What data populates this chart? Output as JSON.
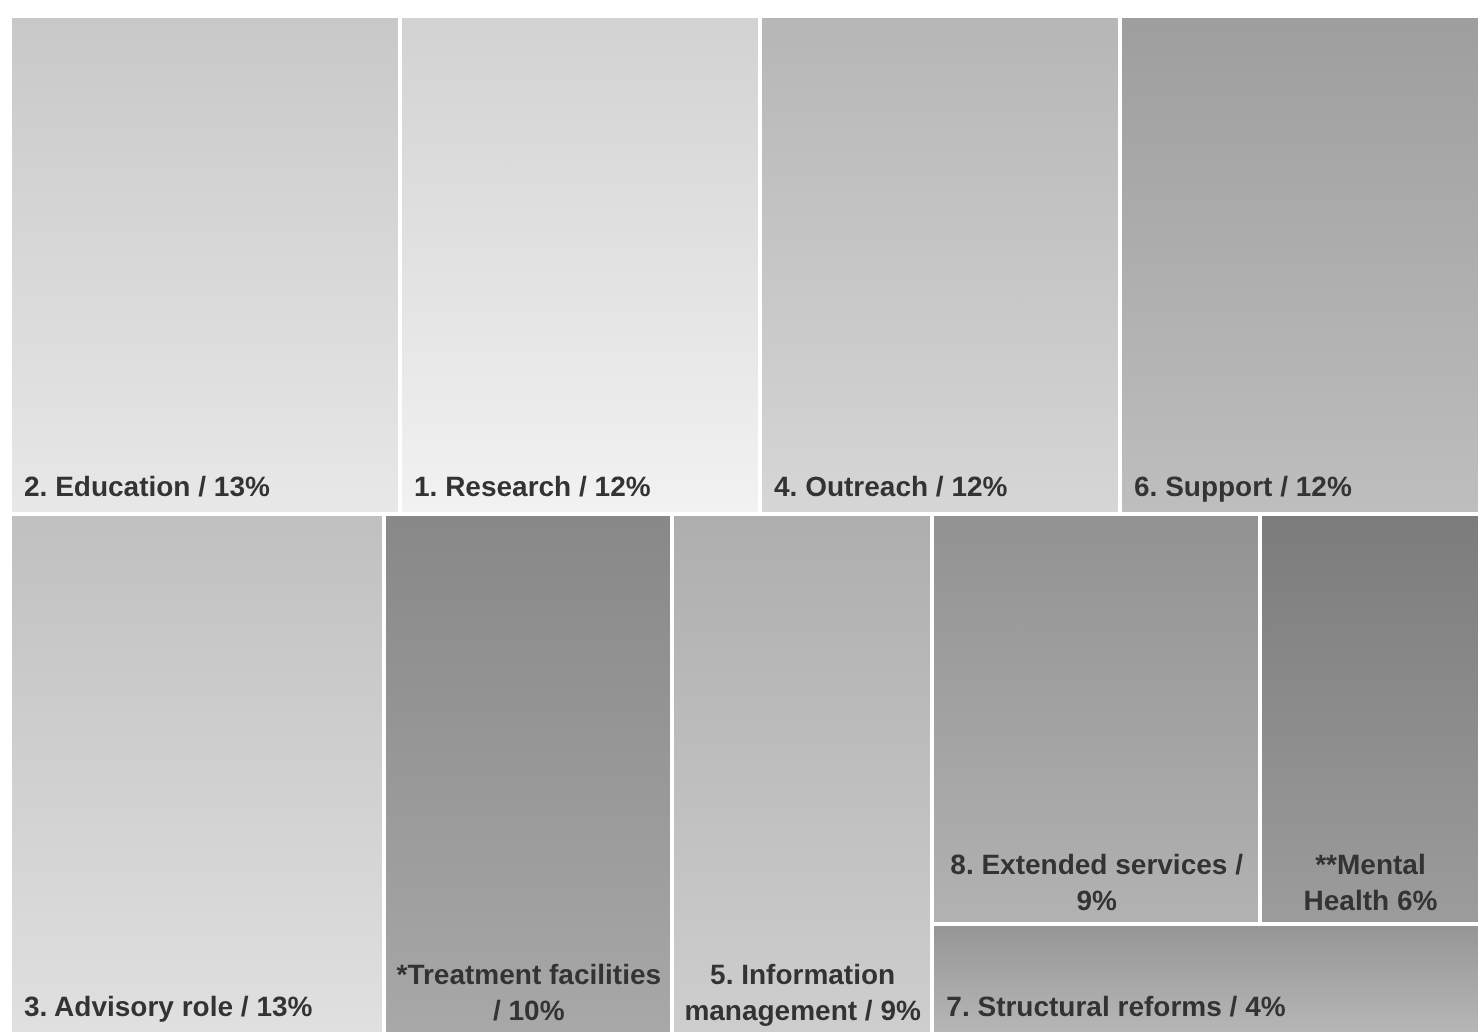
{
  "chart_data": {
    "type": "other",
    "categories": [
      "2. Education /",
      "1. Research /",
      "4. Outreach /",
      "6. Support /",
      "3. Advisory role /",
      "*Treatment facilities /",
      "5. Information management /",
      "8. Extended services /",
      "**Mental Health",
      "7. Structural reforms /"
    ],
    "values": [
      13,
      12,
      12,
      12,
      13,
      10,
      9,
      9,
      6,
      4
    ],
    "value_labels": [
      "13%",
      "12%",
      "12%",
      "12%",
      "13%",
      "10%",
      "9%",
      "9%",
      "6%",
      "4%"
    ],
    "colors": [
      "#dadada",
      "#e4e4e4",
      "#c8c8c8",
      "#b0b0b0",
      "#d2d2d2",
      "#9a9a9a",
      "#c0c0c0",
      "#a4a4a4",
      "#8e8e8e",
      "#a8a8a8"
    ]
  }
}
